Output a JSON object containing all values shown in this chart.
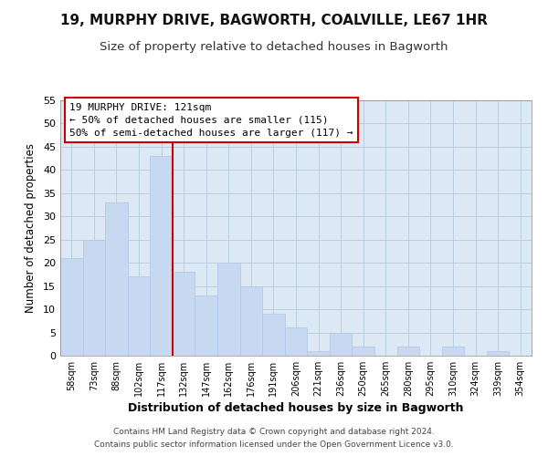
{
  "title1": "19, MURPHY DRIVE, BAGWORTH, COALVILLE, LE67 1HR",
  "title2": "Size of property relative to detached houses in Bagworth",
  "xlabel": "Distribution of detached houses by size in Bagworth",
  "ylabel": "Number of detached properties",
  "bar_labels": [
    "58sqm",
    "73sqm",
    "88sqm",
    "102sqm",
    "117sqm",
    "132sqm",
    "147sqm",
    "162sqm",
    "176sqm",
    "191sqm",
    "206sqm",
    "221sqm",
    "236sqm",
    "250sqm",
    "265sqm",
    "280sqm",
    "295sqm",
    "310sqm",
    "324sqm",
    "339sqm",
    "354sqm"
  ],
  "bar_values": [
    21,
    25,
    33,
    17,
    43,
    18,
    13,
    20,
    15,
    9,
    6,
    1,
    5,
    2,
    0,
    2,
    0,
    2,
    0,
    1,
    0
  ],
  "bar_color": "#c6d9f0",
  "bar_edge_color": "#aec6e8",
  "vline_x": 4.5,
  "vline_color": "#cc0000",
  "ylim": [
    0,
    55
  ],
  "yticks": [
    0,
    5,
    10,
    15,
    20,
    25,
    30,
    35,
    40,
    45,
    50,
    55
  ],
  "annotation_title": "19 MURPHY DRIVE: 121sqm",
  "annotation_line1": "← 50% of detached houses are smaller (115)",
  "annotation_line2": "50% of semi-detached houses are larger (117) →",
  "annotation_box_color": "#ffffff",
  "annotation_box_edge": "#cc0000",
  "footer1": "Contains HM Land Registry data © Crown copyright and database right 2024.",
  "footer2": "Contains public sector information licensed under the Open Government Licence v3.0.",
  "bg_color": "#ffffff",
  "ax_bg_color": "#dce9f5",
  "grid_color": "#b8cfe0",
  "title1_fontsize": 11,
  "title2_fontsize": 9.5
}
